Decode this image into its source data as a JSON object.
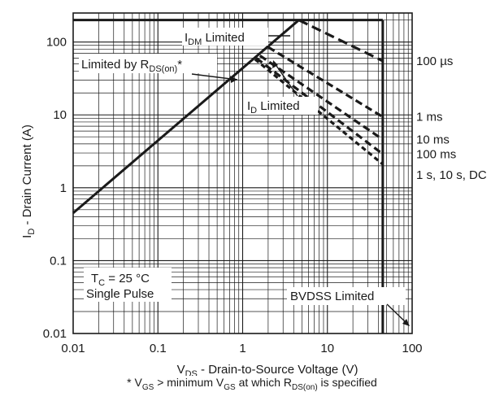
{
  "chart_data": {
    "type": "line",
    "x_scale": "log",
    "y_scale": "log",
    "xlim": [
      0.01,
      100
    ],
    "ylim": [
      0.01,
      250
    ],
    "grid": true,
    "x_ticks": [
      {
        "value": 0.01,
        "label": "0.01"
      },
      {
        "value": 0.1,
        "label": "0.1"
      },
      {
        "value": 1,
        "label": "1"
      },
      {
        "value": 10,
        "label": "10"
      },
      {
        "value": 100,
        "label": "100"
      }
    ],
    "y_ticks": [
      {
        "value": 0.01,
        "label": "0.01"
      },
      {
        "value": 0.1,
        "label": "0.1"
      },
      {
        "value": 1,
        "label": "1"
      },
      {
        "value": 10,
        "label": "10"
      },
      {
        "value": 100,
        "label": "100"
      }
    ],
    "xlabel": {
      "main": "V",
      "sub": "DS",
      "rest": " - Drain-to-Source Voltage (V)"
    },
    "ylabel": {
      "main": "I",
      "sub": "D",
      "rest": " - Drain Current (A)"
    },
    "limits": {
      "idm_current": 200,
      "bvdss_voltage": 45,
      "rds_on_line": [
        [
          0.01,
          0.45
        ],
        [
          4.6,
          200
        ]
      ]
    },
    "series": [
      {
        "name": "100 µs",
        "points": [
          [
            4.6,
            200
          ],
          [
            45,
            55
          ]
        ],
        "dash": "long"
      },
      {
        "name": "1 ms",
        "points": [
          [
            2.0,
            85
          ],
          [
            45,
            9.4
          ]
        ],
        "dash": "medium"
      },
      {
        "name": "10 ms",
        "points": [
          [
            1.6,
            65
          ],
          [
            45,
            4.6
          ]
        ],
        "dash": "medium"
      },
      {
        "name": "100 ms",
        "points": [
          [
            1.45,
            60
          ],
          [
            45,
            2.9
          ]
        ],
        "dash": "medium"
      },
      {
        "name": "1 s, 10 s, DC",
        "points": [
          [
            1.4,
            58
          ],
          [
            45,
            2.1
          ]
        ],
        "dash": "short"
      }
    ],
    "annotations": {
      "idm": {
        "main": "I",
        "sub": "DM",
        "rest": " Limited"
      },
      "rds": {
        "main": "Limited by R",
        "sub": "DS(on)",
        "rest": "*"
      },
      "id": {
        "main": "I",
        "sub": "D",
        "rest": " Limited"
      },
      "tc": {
        "main": "T",
        "sub": "C",
        "rest": " = 25 °C"
      },
      "pulse": "Single Pulse",
      "bvdss": "BVDSS Limited"
    },
    "footnote": {
      "p1": "* V",
      "s1": "GS",
      "p2": " > minimum V",
      "s2": "GS",
      "p3": " at which R",
      "s3": "DS(on)",
      "p4": " is specified"
    },
    "colors": {
      "line": "#1a1a1a",
      "grid": "#1a1a1a",
      "background": "#ffffff"
    }
  }
}
